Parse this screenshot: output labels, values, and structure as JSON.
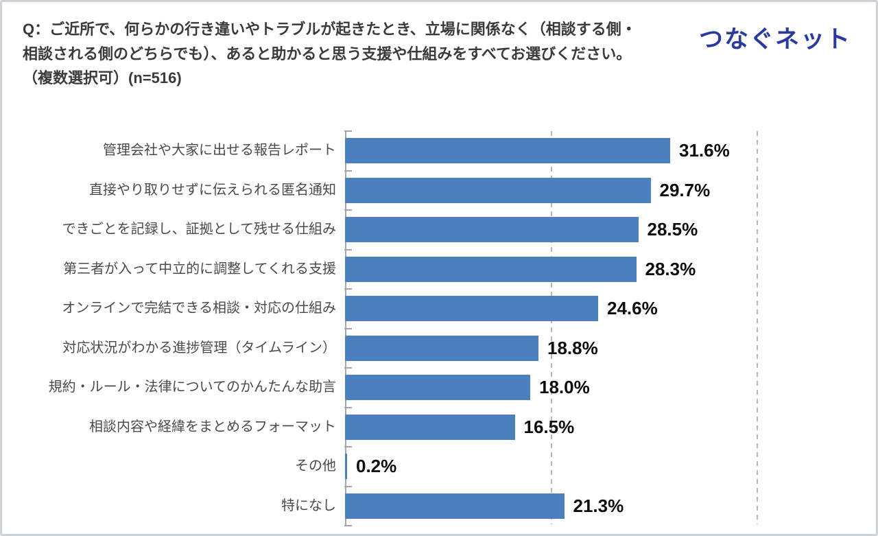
{
  "header": {
    "question": "Q：ご近所で、何らかの行き違いやトラブルが起きたとき、立場に関係なく（相談する側・\n相談される側のどちらでも）、あると助かると思う支援や仕組みをすべてお選びください。\n（複数選択可）(n=516)",
    "logo_text": "つなぐネット",
    "logo_color": "#2a3aa0"
  },
  "chart_data": {
    "type": "bar",
    "orientation": "horizontal",
    "title": "",
    "xlabel": "",
    "ylabel": "",
    "n": 516,
    "categories": [
      "管理会社や大家に出せる報告レポート",
      "直接やり取りせずに伝えられる匿名通知",
      "できごとを記録し、証拠として残せる仕組み",
      "第三者が入って中立的に調整してくれる支援",
      "オンラインで完結できる相談・対応の仕組み",
      "対応状況がわかる進捗管理（タイムライン）",
      "規約・ルール・法律についてのかんたんな助言",
      "相談内容や経緯をまとめるフォーマット",
      "その他",
      "特になし"
    ],
    "values": [
      31.6,
      29.7,
      28.5,
      28.3,
      24.6,
      18.8,
      18.0,
      16.5,
      0.2,
      21.3
    ],
    "value_labels": [
      "31.6%",
      "29.7%",
      "28.5%",
      "28.3%",
      "24.6%",
      "18.8%",
      "18.0%",
      "16.5%",
      "0.2%",
      "21.3%"
    ],
    "xlim": [
      0,
      50
    ],
    "gridlines_percent": [
      20,
      40
    ],
    "grid_style": "dashed-vertical",
    "legend": "none",
    "bar_color": "#4c7fbe",
    "axis_color": "#a6a6a6",
    "gridline_color": "#b6b6b6",
    "value_label_color": "#0d0d0d",
    "category_label_color": "#4a4a4a"
  }
}
